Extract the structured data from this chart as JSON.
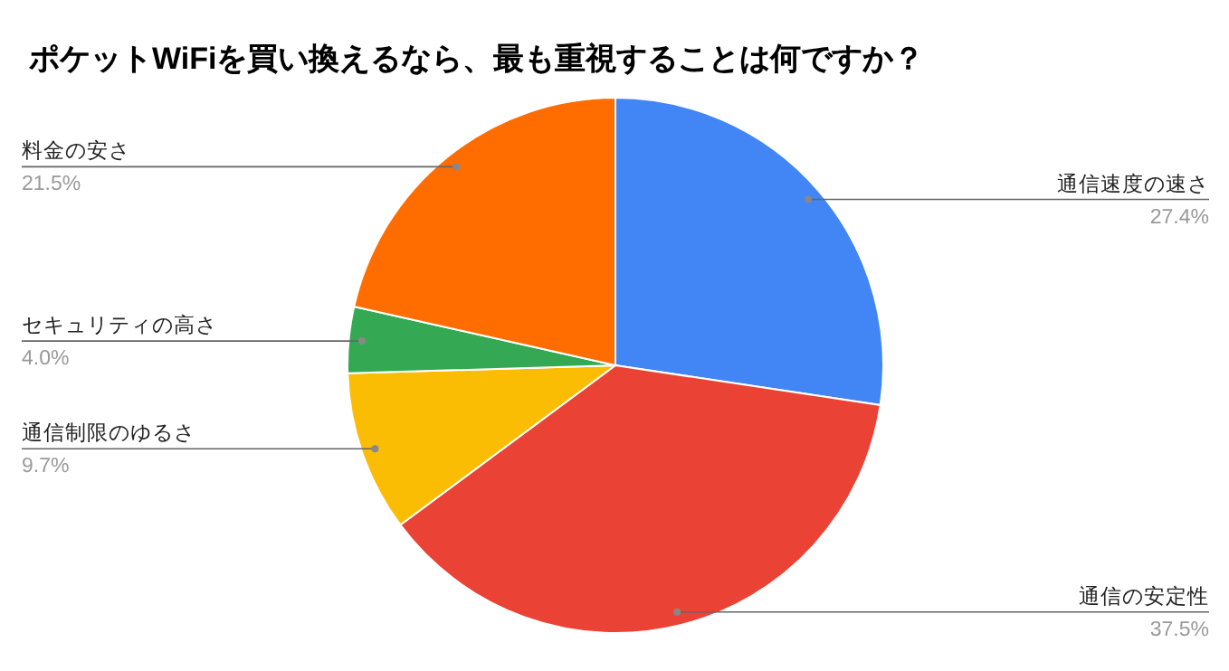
{
  "chart_data": {
    "type": "pie",
    "title": "ポケットWiFiを買い換えるなら、最も重視することは何ですか？",
    "categories": [
      "通信速度の速さ",
      "通信の安定性",
      "通信制限のゆるさ",
      "セキュリティの高さ",
      "料金の安さ"
    ],
    "values": [
      27.4,
      37.5,
      9.7,
      4.0,
      21.5
    ],
    "colors": [
      "#4285f4",
      "#ea4335",
      "#fbbc04",
      "#34a853",
      "#ff6d01"
    ],
    "value_labels": [
      "27.4%",
      "37.5%",
      "9.7%",
      "4.0%",
      "21.5%"
    ]
  }
}
